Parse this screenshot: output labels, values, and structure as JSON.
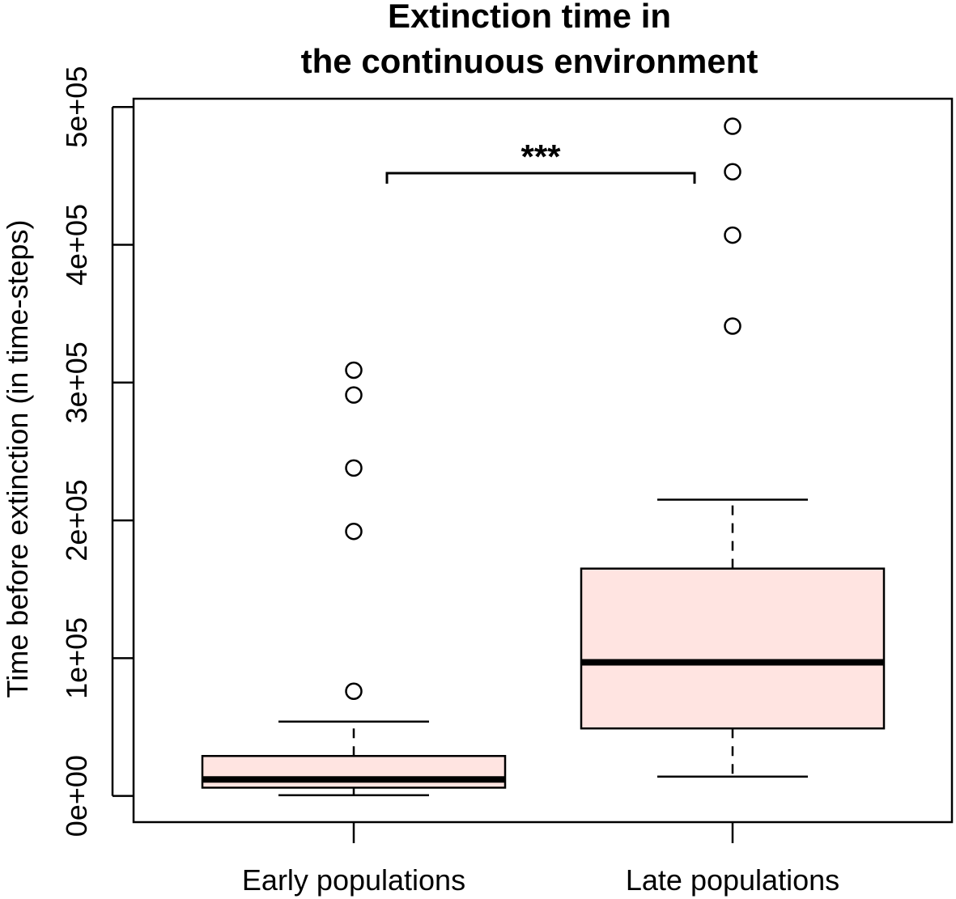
{
  "chart_data": {
    "type": "boxplot",
    "title": [
      "Extinction time in",
      "the continuous environment"
    ],
    "ylabel": "Time before extinction (in time-steps)",
    "xlabel": "",
    "ylim": [
      -19000,
      506000
    ],
    "yticks": [
      0,
      100000,
      200000,
      300000,
      400000,
      500000
    ],
    "ytick_labels": [
      "0e+00",
      "1e+05",
      "2e+05",
      "3e+05",
      "4e+05",
      "5e+05"
    ],
    "grid": false,
    "legend": "none",
    "box_color": "#FFE4E1",
    "categories": [
      "Early populations",
      "Late populations"
    ],
    "boxes": [
      {
        "name": "Early populations",
        "whisker_low": 500,
        "q1": 6000,
        "median": 12000,
        "q3": 29000,
        "whisker_high": 54000,
        "outliers": [
          76000,
          192000,
          238000,
          291000,
          309000
        ]
      },
      {
        "name": "Late populations",
        "whisker_low": 14000,
        "q1": 49000,
        "median": 97000,
        "q3": 165000,
        "whisker_high": 215000,
        "outliers": [
          341000,
          407000,
          453000,
          486000
        ]
      }
    ],
    "annotations": [
      {
        "text": "***",
        "between": [
          "Early populations",
          "Late populations"
        ],
        "y": 452000
      }
    ]
  }
}
